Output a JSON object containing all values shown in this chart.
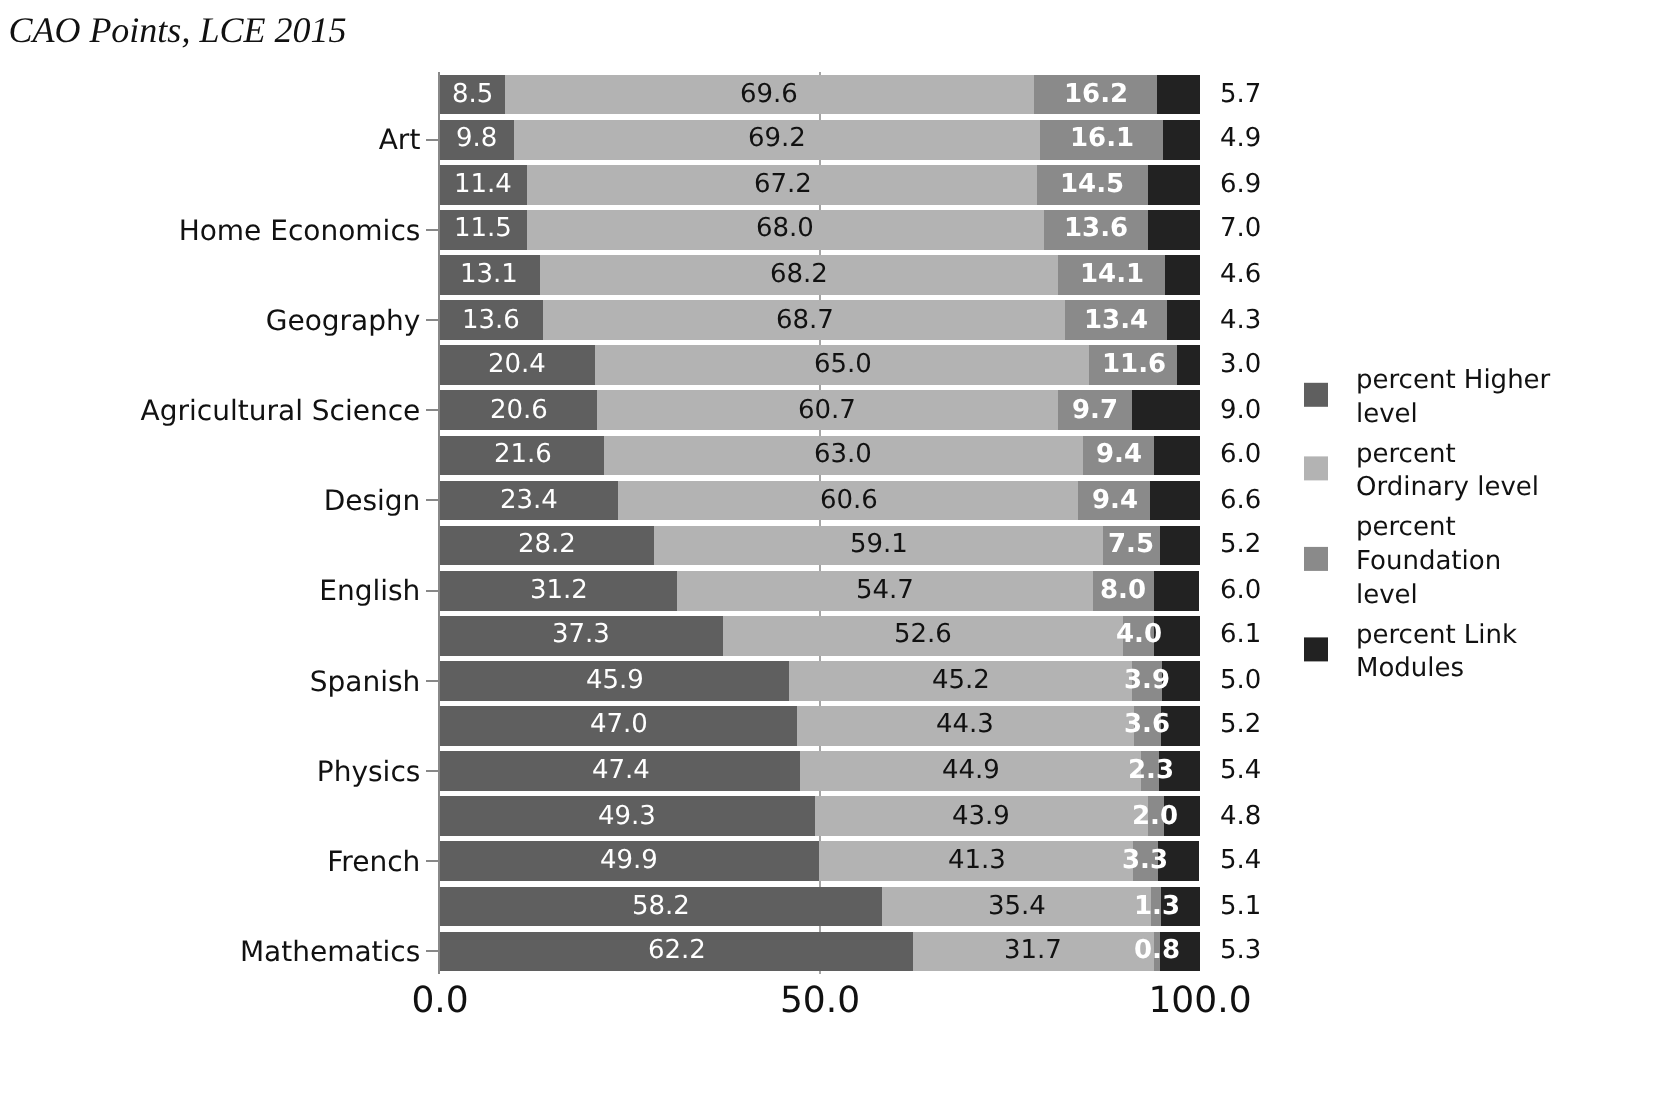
{
  "chart_data": {
    "type": "bar",
    "orientation": "horizontal",
    "stacked": true,
    "title": "CAO Points, LCE 2015",
    "categories": [
      null,
      "Art",
      null,
      "Home Economics",
      null,
      "Geography",
      null,
      "Agricultural Science",
      null,
      "Design",
      null,
      "English",
      null,
      "Spanish",
      null,
      "Physics",
      null,
      "French",
      null,
      "Mathematics"
    ],
    "series": [
      {
        "name": "percent Higher level",
        "color": "#5f5f5f",
        "values": [
          8.5,
          9.8,
          11.4,
          11.5,
          13.1,
          13.6,
          20.4,
          20.6,
          21.6,
          23.4,
          28.2,
          31.2,
          37.3,
          45.9,
          47.0,
          47.4,
          49.3,
          49.9,
          58.2,
          62.2
        ],
        "value_labels": [
          "8.5",
          "9.8",
          "11.4",
          "11.5",
          "13.1",
          "13.6",
          "20.4",
          "20.6",
          "21.6",
          "23.4",
          "28.2",
          "31.2",
          "37.3",
          "45.9",
          "47.0",
          "47.4",
          "49.3",
          "49.9",
          "58.2",
          "62.2"
        ]
      },
      {
        "name": "percent Ordinary level",
        "color": "#b3b3b3",
        "values": [
          69.6,
          69.2,
          67.2,
          68.0,
          68.2,
          68.7,
          65.0,
          60.7,
          63.0,
          60.6,
          59.1,
          54.7,
          52.6,
          45.2,
          44.3,
          44.9,
          43.9,
          41.3,
          35.4,
          31.7
        ],
        "value_labels": [
          "69.6",
          "69.2",
          "67.2",
          "68.0",
          "68.2",
          "68.7",
          "65.0",
          "60.7",
          "63.0",
          "60.6",
          "59.1",
          "54.7",
          "52.6",
          "45.2",
          "44.3",
          "44.9",
          "43.9",
          "41.3",
          "35.4",
          "31.7"
        ]
      },
      {
        "name": "percent Foundation level",
        "color": "#8a8a8a",
        "values": [
          16.2,
          16.1,
          14.5,
          13.6,
          14.1,
          13.4,
          11.6,
          9.7,
          9.4,
          9.4,
          7.5,
          8.0,
          4.0,
          3.9,
          3.6,
          2.3,
          2.0,
          3.3,
          1.3,
          0.8
        ],
        "value_labels": [
          "16.2",
          "16.1",
          "14.5",
          "13.6",
          "14.1",
          "13.4",
          "11.6",
          "9.7",
          "9.4",
          "9.4",
          "7.5",
          "8.0",
          "4.0",
          "3.9",
          "3.6",
          "2.3",
          "2.0",
          "3.3",
          "1.3",
          "0.8"
        ]
      },
      {
        "name": "percent Link Modules",
        "color": "#222222",
        "values": [
          5.7,
          4.9,
          6.9,
          7.0,
          4.6,
          4.3,
          3.0,
          9.0,
          6.0,
          6.6,
          5.2,
          6.0,
          6.1,
          5.0,
          5.2,
          5.4,
          4.8,
          5.4,
          5.1,
          5.3
        ],
        "value_labels": [
          "5.7",
          "4.9",
          "6.9",
          "7.0",
          "4.6",
          "4.3",
          "3.0",
          "9.0",
          "6.0",
          "6.6",
          "5.2",
          "6.0",
          "6.1",
          "5.0",
          "5.2",
          "5.4",
          "4.8",
          "5.4",
          "5.1",
          "5.3"
        ]
      }
    ],
    "xlim": [
      0,
      100
    ],
    "xticks": [
      {
        "value": 0,
        "label": "0.0"
      },
      {
        "value": 50,
        "label": "50.0"
      },
      {
        "value": 100,
        "label": "100.0"
      }
    ],
    "grid": "x",
    "legend": "right"
  }
}
